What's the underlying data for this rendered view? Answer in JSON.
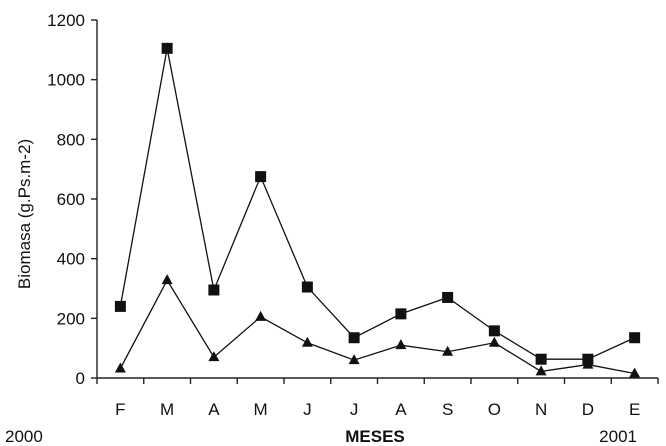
{
  "chart_data": {
    "type": "line",
    "title": "",
    "xlabel": "MESES",
    "ylabel": "Biomasa (g.Ps.m-2)",
    "categories": [
      "F",
      "M",
      "A",
      "M",
      "J",
      "J",
      "A",
      "S",
      "O",
      "N",
      "D",
      "E"
    ],
    "year_start_label": "2000",
    "year_end_label": "2001",
    "ylim": [
      0,
      1200
    ],
    "yticks": [
      0,
      200,
      400,
      600,
      800,
      1000,
      1200
    ],
    "grid": false,
    "legend": "none",
    "series": [
      {
        "marker": "square",
        "color": "#111111",
        "values": [
          240,
          1105,
          295,
          675,
          305,
          135,
          215,
          270,
          158,
          63,
          63,
          135
        ]
      },
      {
        "marker": "triangle",
        "color": "#111111",
        "values": [
          32,
          328,
          70,
          205,
          118,
          60,
          110,
          88,
          118,
          22,
          45,
          15
        ]
      }
    ]
  }
}
